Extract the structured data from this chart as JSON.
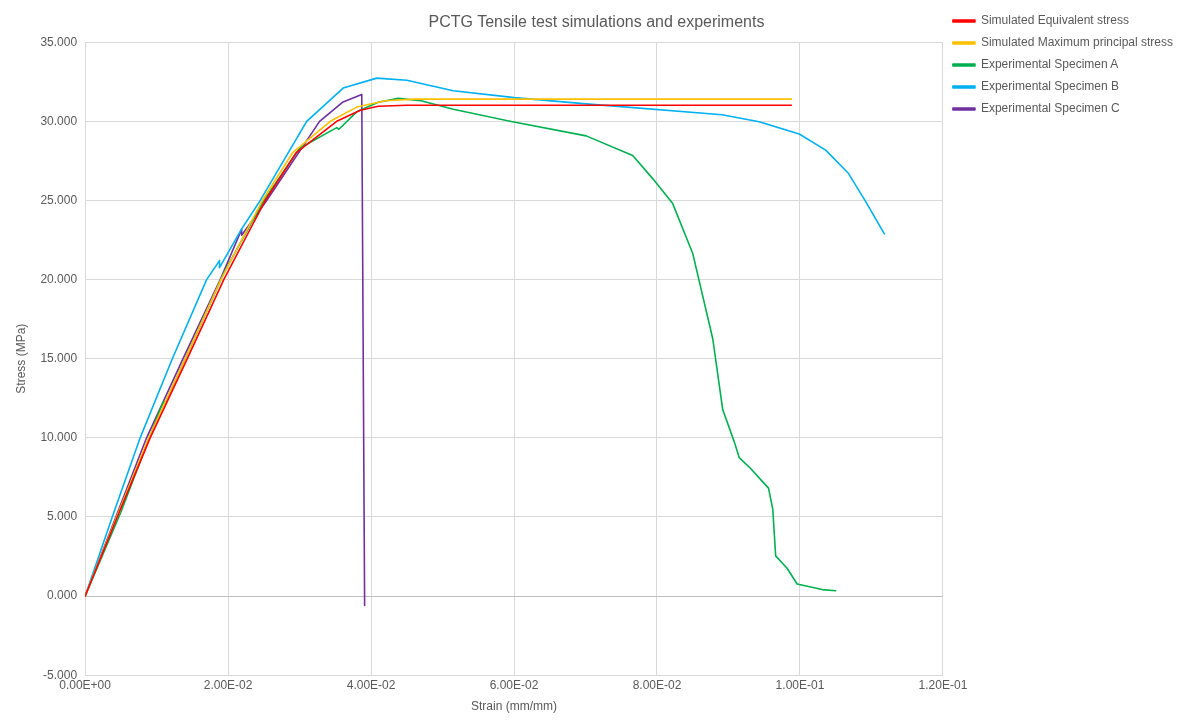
{
  "chart_data": {
    "type": "line",
    "title": "PCTG Tensile test simulations and experiments",
    "xlabel": "Strain (mm/mm)",
    "ylabel": "Stress (MPa)",
    "xlim": [
      0,
      0.12
    ],
    "ylim": [
      -5,
      35
    ],
    "xticks": [
      {
        "value": 0,
        "label": "0.00E+00"
      },
      {
        "value": 0.02,
        "label": "2.00E-02"
      },
      {
        "value": 0.04,
        "label": "4.00E-02"
      },
      {
        "value": 0.06,
        "label": "6.00E-02"
      },
      {
        "value": 0.08,
        "label": "8.00E-02"
      },
      {
        "value": 0.1,
        "label": "1.00E-01"
      },
      {
        "value": 0.12,
        "label": "1.20E-01"
      }
    ],
    "yticks": [
      {
        "value": -5,
        "label": "-5.000"
      },
      {
        "value": 0,
        "label": "0.000"
      },
      {
        "value": 5,
        "label": "5.000"
      },
      {
        "value": 10,
        "label": "10.000"
      },
      {
        "value": 15,
        "label": "15.000"
      },
      {
        "value": 20,
        "label": "20.000"
      },
      {
        "value": 25,
        "label": "25.000"
      },
      {
        "value": 30,
        "label": "30.000"
      },
      {
        "value": 35,
        "label": "35.000"
      }
    ],
    "grid": true,
    "legend": "top right",
    "marker": "none",
    "line_style": "solid",
    "series": [
      {
        "name": "Simulated Equivalent stress",
        "color": "#ff0000",
        "x": [
          0,
          0.0045,
          0.0091,
          0.0143,
          0.0194,
          0.0252,
          0.0295,
          0.0352,
          0.0385,
          0.041,
          0.045,
          0.0988
        ],
        "values": [
          0,
          5,
          10,
          15,
          20,
          25,
          28,
          30,
          30.7,
          30.95,
          31.02,
          31.02
        ]
      },
      {
        "name": "Simulated Maximum principal stress",
        "color": "#ffc000",
        "x": [
          0,
          0.0044,
          0.0089,
          0.014,
          0.019,
          0.0248,
          0.029,
          0.0343,
          0.038,
          0.042,
          0.046,
          0.0988
        ],
        "values": [
          0,
          5,
          10,
          15,
          20,
          25,
          28,
          30,
          30.9,
          31.3,
          31.4,
          31.4
        ]
      },
      {
        "name": "Experimental Specimen A",
        "color": "#00b050",
        "x": [
          0,
          0.005,
          0.0105,
          0.011,
          0.0112,
          0.015,
          0.0195,
          0.025,
          0.03,
          0.0352,
          0.0355,
          0.038,
          0.041,
          0.0438,
          0.047,
          0.0515,
          0.0598,
          0.0701,
          0.0766,
          0.0794,
          0.0822,
          0.085,
          0.0864,
          0.0878,
          0.0892,
          0.0908,
          0.0915,
          0.0931,
          0.0956,
          0.0962,
          0.0966,
          0.0982,
          0.0996,
          0.1031,
          0.105
        ],
        "values": [
          0,
          5.3,
          11.8,
          12.3,
          12.2,
          16,
          20.5,
          25,
          28.3,
          29.6,
          29.5,
          30.6,
          31.2,
          31.45,
          31.3,
          30.76,
          29.97,
          29.08,
          27.84,
          26.38,
          24.8,
          21.65,
          18.95,
          16.26,
          11.77,
          9.76,
          8.75,
          8.06,
          6.82,
          5.48,
          2.54,
          1.76,
          0.76,
          0.41,
          0.34
        ]
      },
      {
        "name": "Experimental Specimen B",
        "color": "#00b0f0",
        "x": [
          0,
          0.0038,
          0.0077,
          0.0122,
          0.017,
          0.0188,
          0.0188,
          0.0219,
          0.0245,
          0.031,
          0.0361,
          0.0408,
          0.045,
          0.0515,
          0.06,
          0.0701,
          0.0891,
          0.0943,
          0.0999,
          0.1036,
          0.1068,
          0.1092,
          0.1118
        ],
        "values": [
          0,
          5,
          10,
          15,
          20,
          21.2,
          20.75,
          23.2,
          25,
          30,
          32.1,
          32.73,
          32.6,
          31.93,
          31.5,
          31.1,
          30.42,
          29.97,
          29.2,
          28.18,
          26.7,
          24.93,
          22.89
        ]
      },
      {
        "name": "Experimental Specimen C",
        "color": "#7030a0",
        "x": [
          0,
          0.0043,
          0.0086,
          0.0137,
          0.0189,
          0.0219,
          0.0219,
          0.0254,
          0.0328,
          0.036,
          0.0387,
          0.0391
        ],
        "values": [
          0,
          5,
          10,
          15,
          20,
          23.17,
          22.8,
          25,
          30,
          31.2,
          31.7,
          -0.6
        ]
      }
    ]
  }
}
